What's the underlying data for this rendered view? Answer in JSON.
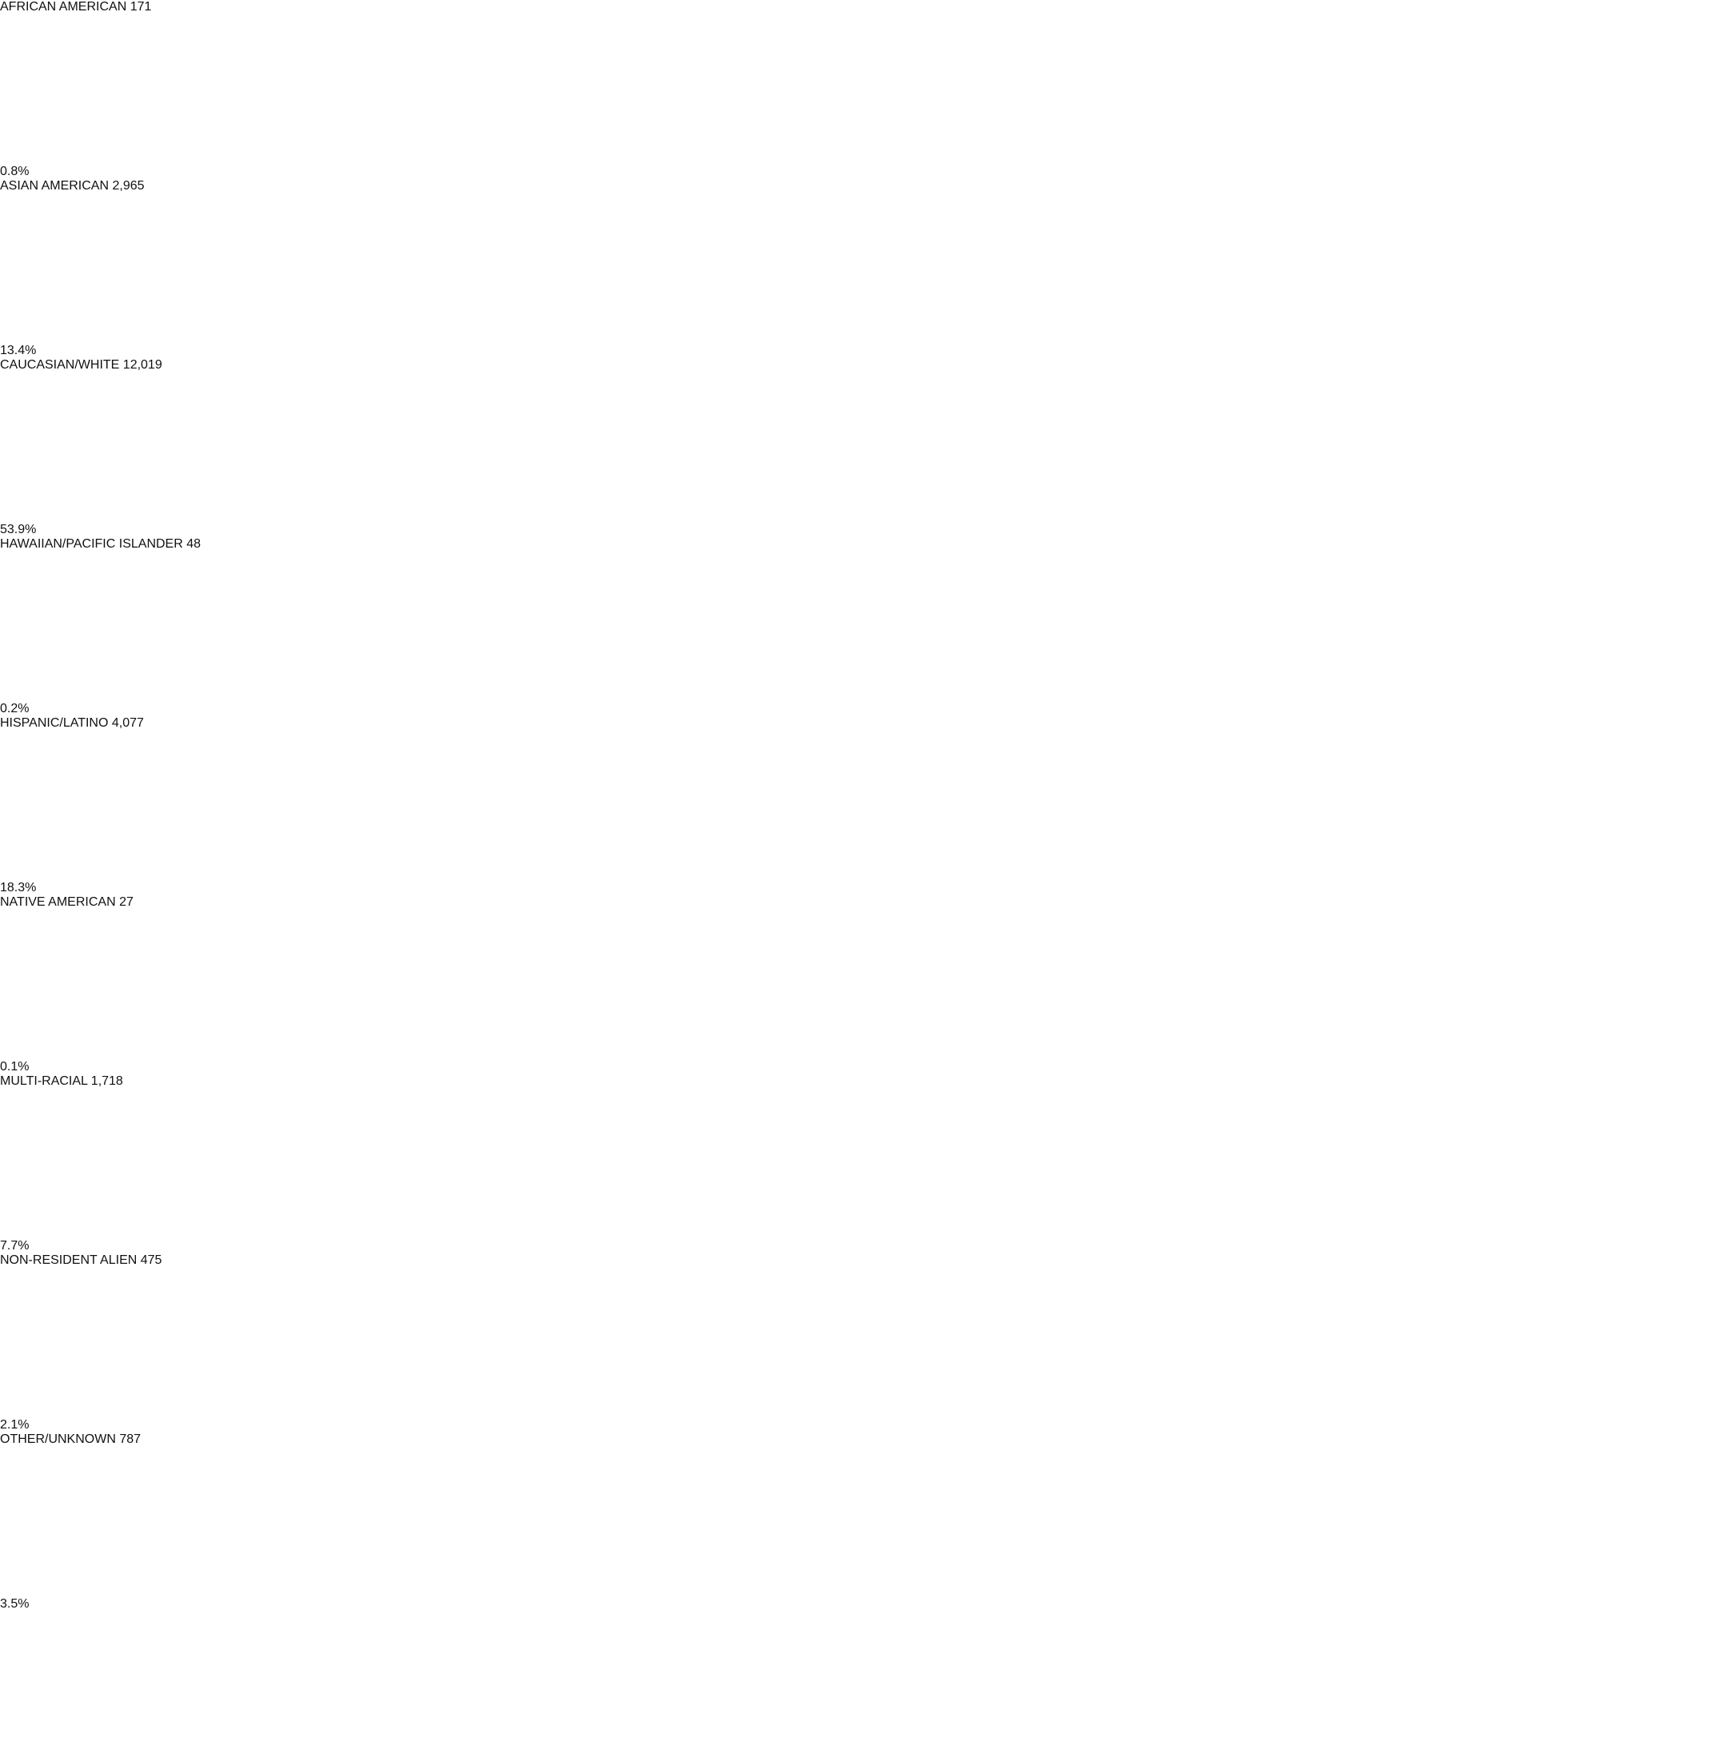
{
  "chart_data": {
    "type": "bar",
    "orientation": "horizontal",
    "categories": [
      "AFRICAN\nAMERICAN 171",
      "ASIAN AMERICAN\n2,965",
      "CAUCASIAN/WHITE\n12,019",
      "HAWAIIAN/PACIFIC\nISLANDER 48",
      "HISPANIC/LATINO\n4,077",
      "NATIVE AMERICAN\n27",
      "MULTI-RACIAL 1,718",
      "NON-RESIDENT\nALIEN 475",
      "OTHER/UNKNOWN\n787"
    ],
    "values": [
      0.8,
      13.4,
      53.9,
      0.2,
      18.3,
      0.1,
      7.7,
      2.1,
      3.5
    ],
    "value_labels": [
      "0.8%",
      "13.4%",
      "53.9%",
      "0.2%",
      "18.3%",
      "0.1%",
      "7.7%",
      "2.1%",
      "3.5%"
    ],
    "color": "#1a4535",
    "xlim": [
      0,
      100
    ]
  }
}
